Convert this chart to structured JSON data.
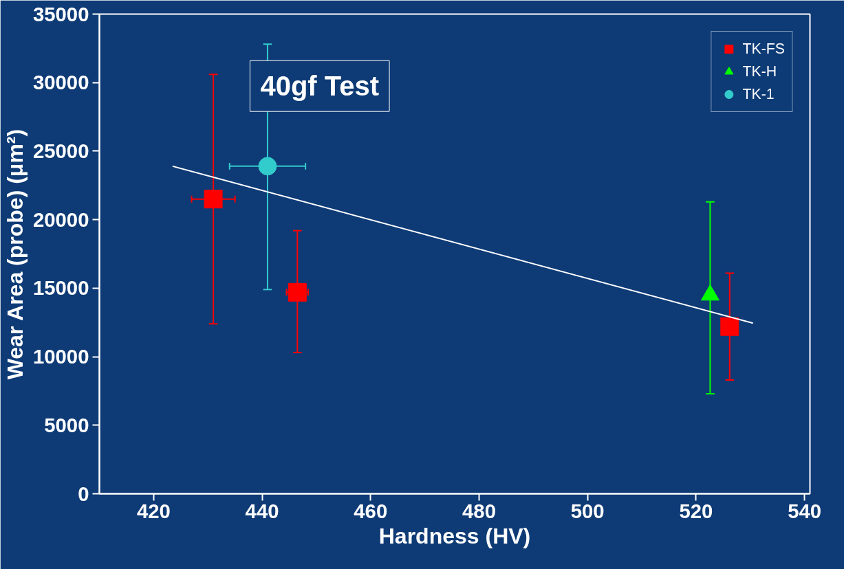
{
  "chart_data": {
    "type": "scatter",
    "title": "40gf Test",
    "xlabel": "Hardness (HV)",
    "ylabel": "Wear Area (probe) (μm²)",
    "xlim": [
      410,
      541
    ],
    "xticks": [
      420,
      440,
      460,
      480,
      500,
      520,
      540
    ],
    "ylim": [
      0,
      35000
    ],
    "yticks": [
      0,
      5000,
      10000,
      15000,
      20000,
      25000,
      30000,
      35000
    ],
    "grid": false,
    "legend": "top right",
    "series": [
      {
        "name": "TK-FS",
        "color": "#ff0000",
        "marker": "square",
        "x": [
          431,
          446.5,
          526.2
        ],
        "values": [
          21500,
          14700,
          12200
        ],
        "errors": [
          [
            12400,
            30600
          ],
          [
            10300,
            19200
          ],
          [
            8300,
            16100
          ]
        ],
        "xerrors": [
          [
            427,
            435
          ],
          [
            444.5,
            448.5
          ],
          null
        ]
      },
      {
        "name": "TK-H",
        "color": "#00ff00",
        "marker": "triangle",
        "x": [
          522.6
        ],
        "values": [
          14500
        ],
        "errors": [
          [
            7300,
            21300
          ]
        ],
        "xerrors": [
          null
        ]
      },
      {
        "name": "TK-1",
        "color": "#33cccc",
        "marker": "circle",
        "x": [
          441
        ],
        "values": [
          23900
        ],
        "errors": [
          [
            14900,
            32800
          ]
        ],
        "xerrors": [
          [
            434,
            448
          ]
        ]
      },
      {
        "type": "line",
        "color": "#ffffff",
        "x": [
          423.5,
          530.5
        ],
        "values": [
          23900,
          12450
        ]
      }
    ]
  }
}
